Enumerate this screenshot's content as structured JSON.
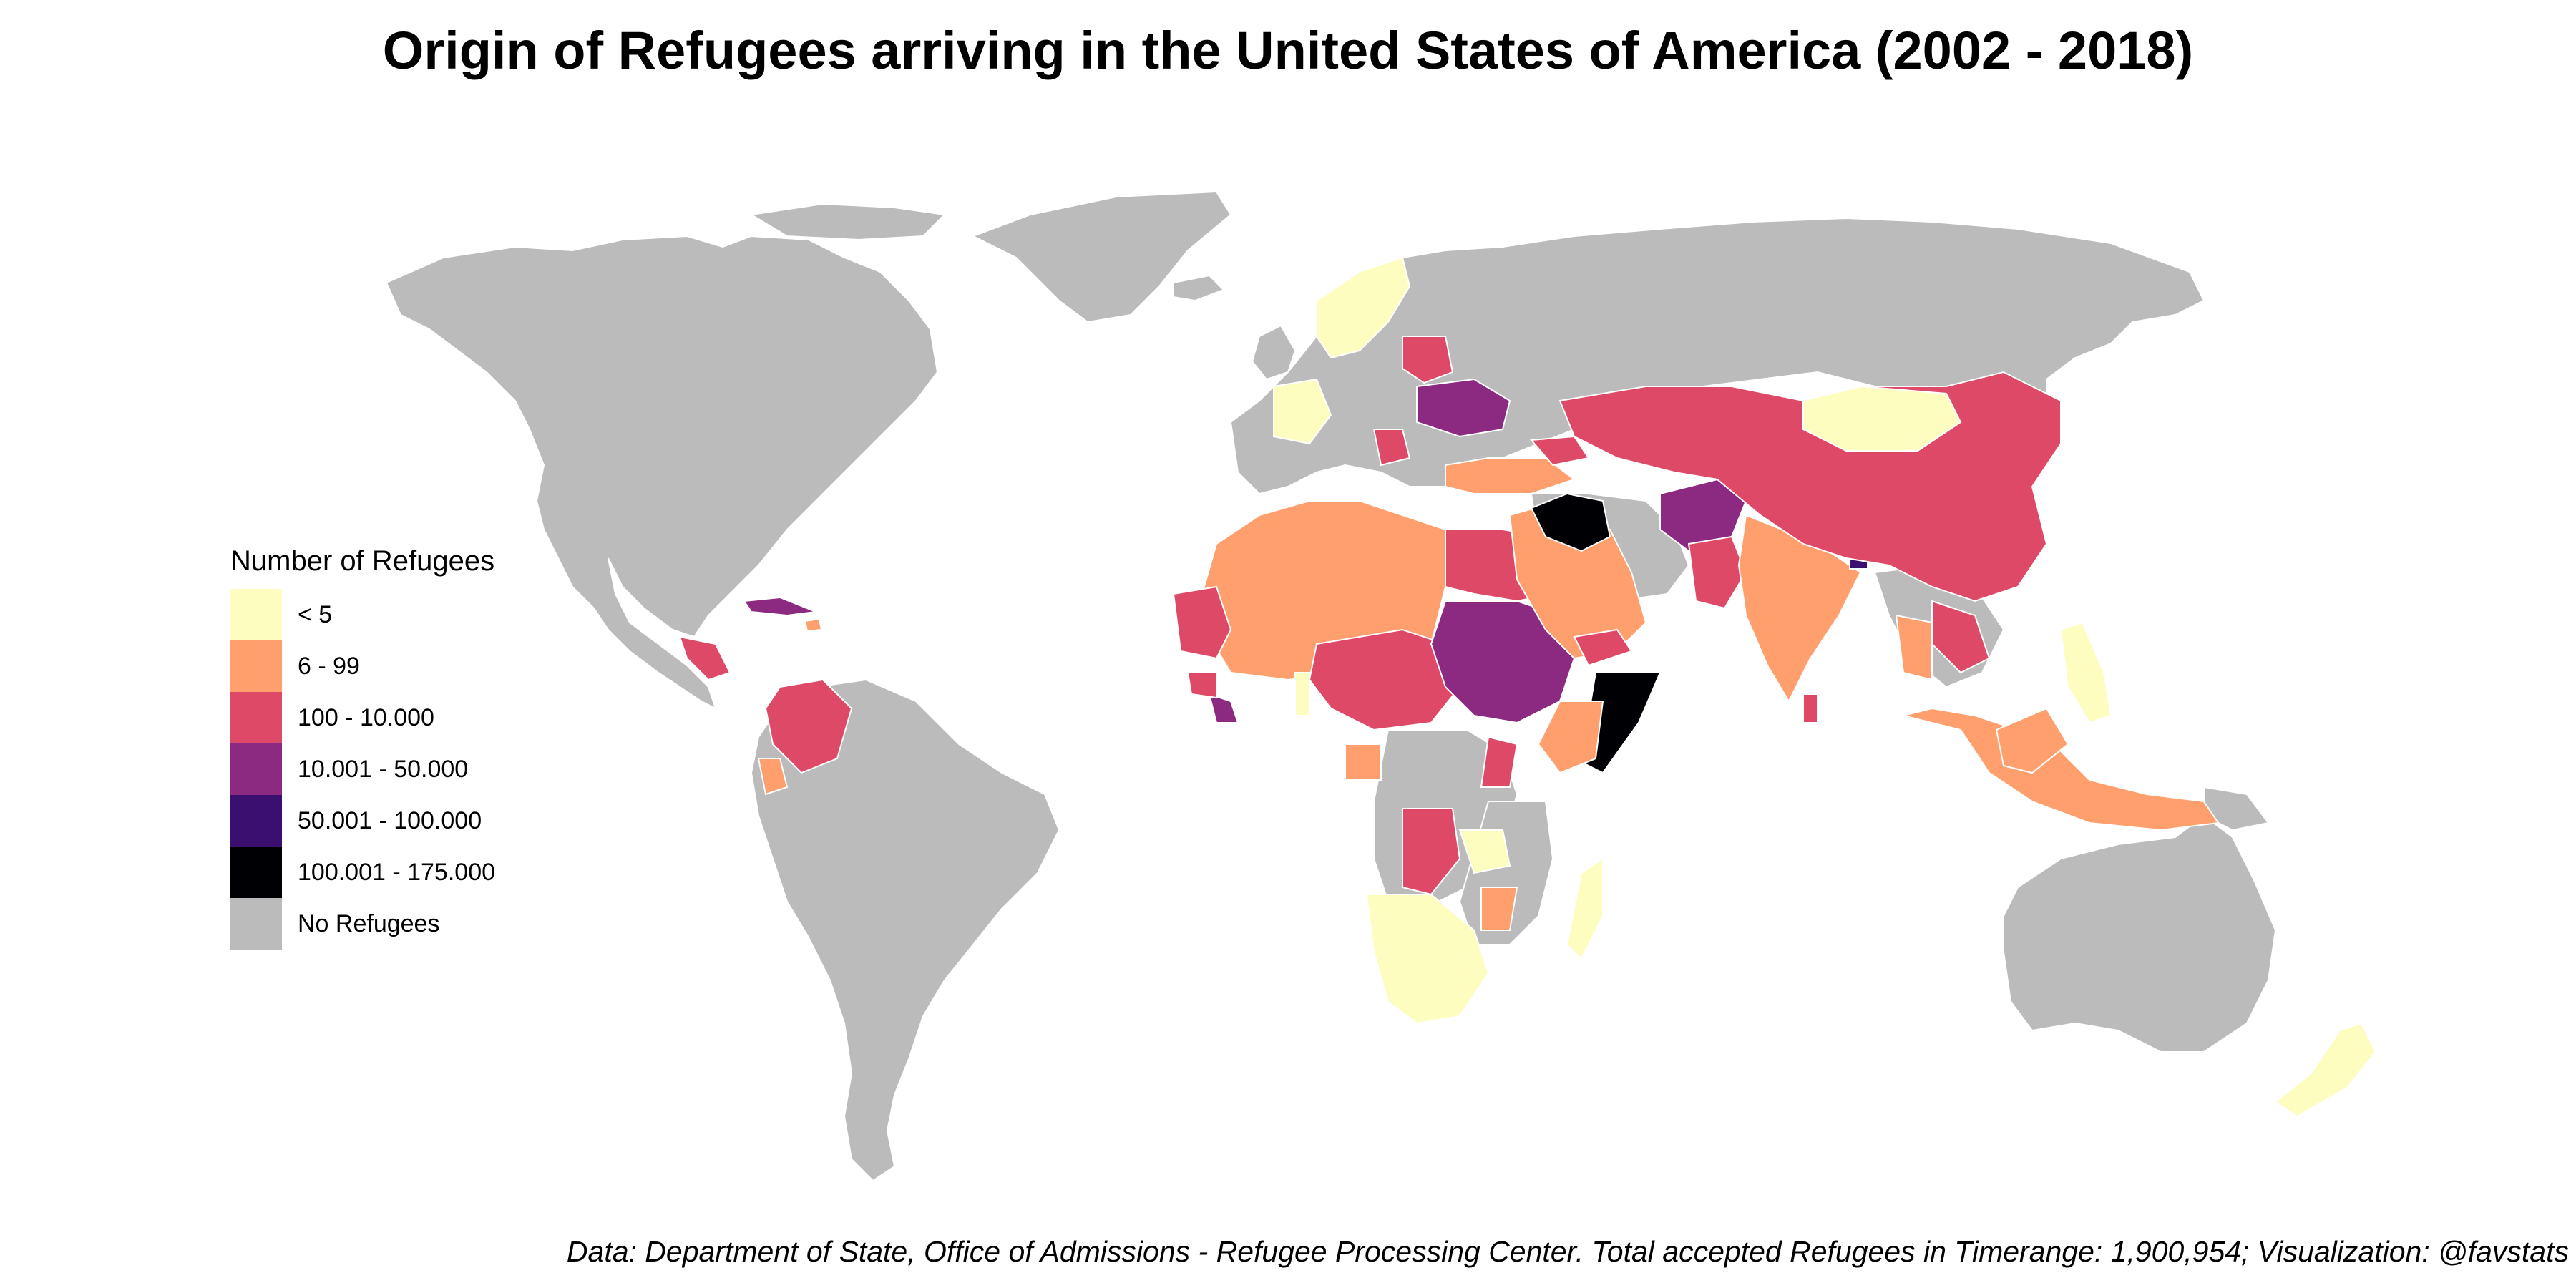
{
  "title": "Origin of Refugees arriving in the United States of America (2002 - 2018)",
  "legend": {
    "title": "Number of Refugees",
    "items": [
      {
        "label": "< 5",
        "color": "#fcfdbf"
      },
      {
        "label": "6 - 99",
        "color": "#fe9f6d"
      },
      {
        "label": "100 - 10.000",
        "color": "#de4968"
      },
      {
        "label": "10.001 - 50.000",
        "color": "#8c2981"
      },
      {
        "label": "50.001 - 100.000",
        "color": "#3b0f70"
      },
      {
        "label": "100.001 - 175.000",
        "color": "#000004"
      },
      {
        "label": "No Refugees",
        "color": "#bbbbbb"
      }
    ]
  },
  "caption": "Data: Department of State, Office of Admissions - Refugee Processing Center. Total accepted Refugees in Timerange: 1,900,954; Visualization: @favstats",
  "colors": {
    "no_data": "#bbbbbb",
    "lt5": "#fcfdbf",
    "b6_99": "#fe9f6d",
    "b100_10000": "#de4968",
    "b10001_50000": "#8c2981",
    "b50001_100000": "#3b0f70",
    "b100001_175000": "#000004"
  }
}
